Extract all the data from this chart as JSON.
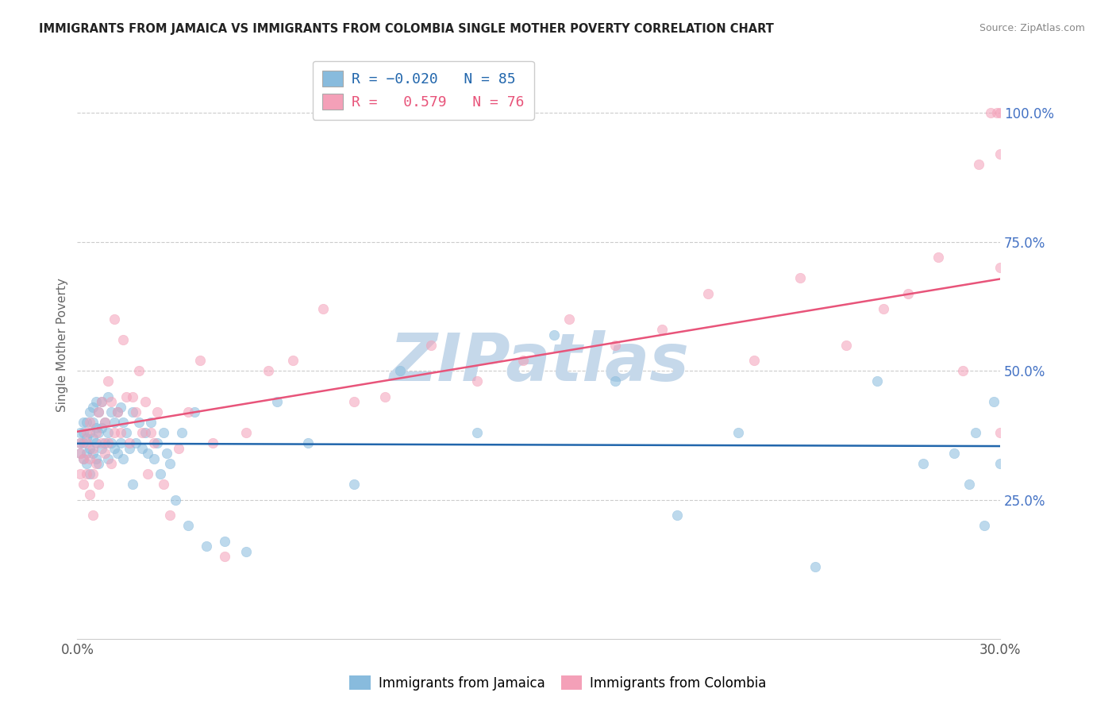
{
  "title": "IMMIGRANTS FROM JAMAICA VS IMMIGRANTS FROM COLOMBIA SINGLE MOTHER POVERTY CORRELATION CHART",
  "source": "Source: ZipAtlas.com",
  "ylabel": "Single Mother Poverty",
  "xlim": [
    0.0,
    0.3
  ],
  "ylim": [
    -0.02,
    1.12
  ],
  "xtick_positions": [
    0.0,
    0.05,
    0.1,
    0.15,
    0.2,
    0.25,
    0.3
  ],
  "xticklabels": [
    "0.0%",
    "",
    "",
    "",
    "",
    "",
    "30.0%"
  ],
  "ytick_positions_right": [
    0.25,
    0.5,
    0.75,
    1.0
  ],
  "ytick_labels_right": [
    "25.0%",
    "50.0%",
    "75.0%",
    "100.0%"
  ],
  "blue_color": "#88bbdd",
  "pink_color": "#f4a0b8",
  "blue_label": "Immigrants from Jamaica",
  "pink_label": "Immigrants from Colombia",
  "watermark": "ZIPatlas",
  "watermark_color": "#c5d8ea",
  "blue_R": -0.02,
  "pink_R": 0.579,
  "blue_line_color": "#2166ac",
  "pink_line_color": "#e8547a",
  "scatter_alpha": 0.55,
  "scatter_size": 80,
  "blue_x": [
    0.001,
    0.001,
    0.001,
    0.002,
    0.002,
    0.002,
    0.002,
    0.003,
    0.003,
    0.003,
    0.003,
    0.004,
    0.004,
    0.004,
    0.004,
    0.005,
    0.005,
    0.005,
    0.005,
    0.006,
    0.006,
    0.006,
    0.006,
    0.007,
    0.007,
    0.007,
    0.008,
    0.008,
    0.008,
    0.009,
    0.009,
    0.01,
    0.01,
    0.01,
    0.011,
    0.011,
    0.012,
    0.012,
    0.013,
    0.013,
    0.014,
    0.014,
    0.015,
    0.015,
    0.016,
    0.017,
    0.018,
    0.018,
    0.019,
    0.02,
    0.021,
    0.022,
    0.023,
    0.024,
    0.025,
    0.026,
    0.027,
    0.028,
    0.029,
    0.03,
    0.032,
    0.034,
    0.036,
    0.038,
    0.042,
    0.048,
    0.055,
    0.065,
    0.075,
    0.09,
    0.105,
    0.13,
    0.155,
    0.175,
    0.195,
    0.215,
    0.24,
    0.26,
    0.275,
    0.285,
    0.29,
    0.292,
    0.295,
    0.298,
    0.3
  ],
  "blue_y": [
    0.34,
    0.36,
    0.38,
    0.33,
    0.36,
    0.38,
    0.4,
    0.34,
    0.37,
    0.4,
    0.32,
    0.35,
    0.38,
    0.42,
    0.3,
    0.34,
    0.37,
    0.4,
    0.43,
    0.33,
    0.36,
    0.39,
    0.44,
    0.32,
    0.38,
    0.42,
    0.35,
    0.39,
    0.44,
    0.36,
    0.4,
    0.33,
    0.38,
    0.45,
    0.36,
    0.42,
    0.35,
    0.4,
    0.34,
    0.42,
    0.36,
    0.43,
    0.33,
    0.4,
    0.38,
    0.35,
    0.42,
    0.28,
    0.36,
    0.4,
    0.35,
    0.38,
    0.34,
    0.4,
    0.33,
    0.36,
    0.3,
    0.38,
    0.34,
    0.32,
    0.25,
    0.38,
    0.2,
    0.42,
    0.16,
    0.17,
    0.15,
    0.44,
    0.36,
    0.28,
    0.5,
    0.38,
    0.57,
    0.48,
    0.22,
    0.38,
    0.12,
    0.48,
    0.32,
    0.34,
    0.28,
    0.38,
    0.2,
    0.44,
    0.32
  ],
  "pink_x": [
    0.001,
    0.001,
    0.001,
    0.002,
    0.002,
    0.003,
    0.003,
    0.003,
    0.004,
    0.004,
    0.004,
    0.005,
    0.005,
    0.005,
    0.006,
    0.006,
    0.007,
    0.007,
    0.008,
    0.008,
    0.009,
    0.009,
    0.01,
    0.01,
    0.011,
    0.011,
    0.012,
    0.012,
    0.013,
    0.014,
    0.015,
    0.016,
    0.017,
    0.018,
    0.019,
    0.02,
    0.021,
    0.022,
    0.023,
    0.024,
    0.025,
    0.026,
    0.028,
    0.03,
    0.033,
    0.036,
    0.04,
    0.044,
    0.048,
    0.055,
    0.062,
    0.07,
    0.08,
    0.09,
    0.1,
    0.115,
    0.13,
    0.145,
    0.16,
    0.175,
    0.19,
    0.205,
    0.22,
    0.235,
    0.25,
    0.262,
    0.27,
    0.28,
    0.288,
    0.293,
    0.297,
    0.299,
    0.3,
    0.3,
    0.3,
    0.3
  ],
  "pink_y": [
    0.3,
    0.34,
    0.36,
    0.28,
    0.33,
    0.36,
    0.3,
    0.38,
    0.33,
    0.26,
    0.4,
    0.35,
    0.3,
    0.22,
    0.38,
    0.32,
    0.42,
    0.28,
    0.36,
    0.44,
    0.34,
    0.4,
    0.48,
    0.36,
    0.32,
    0.44,
    0.38,
    0.6,
    0.42,
    0.38,
    0.56,
    0.45,
    0.36,
    0.45,
    0.42,
    0.5,
    0.38,
    0.44,
    0.3,
    0.38,
    0.36,
    0.42,
    0.28,
    0.22,
    0.35,
    0.42,
    0.52,
    0.36,
    0.14,
    0.38,
    0.5,
    0.52,
    0.62,
    0.44,
    0.45,
    0.55,
    0.48,
    0.52,
    0.6,
    0.55,
    0.58,
    0.65,
    0.52,
    0.68,
    0.55,
    0.62,
    0.65,
    0.72,
    0.5,
    0.9,
    1.0,
    1.0,
    0.7,
    1.0,
    0.38,
    0.92
  ]
}
